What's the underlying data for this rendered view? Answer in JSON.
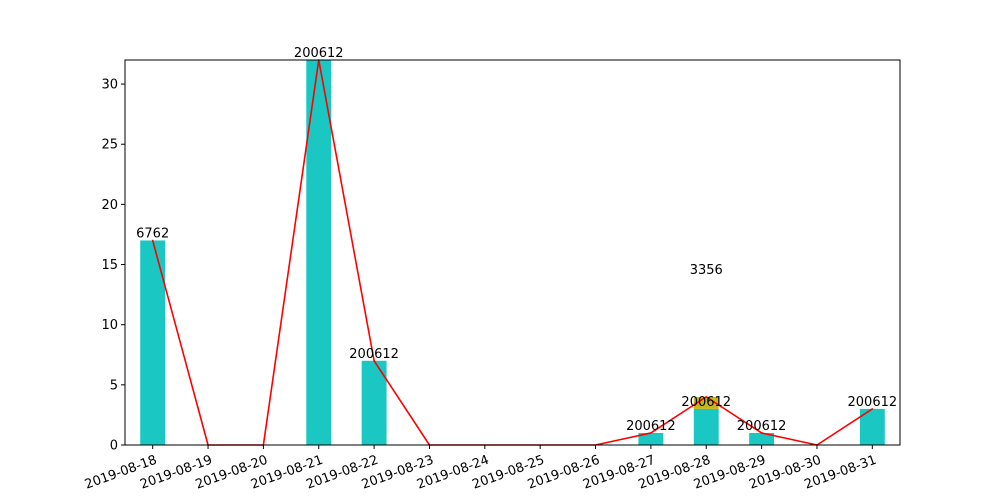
{
  "chart_data": {
    "type": "bar",
    "title": "",
    "xlabel": "",
    "ylabel": "",
    "ylim": [
      0,
      32
    ],
    "yticks": [
      0,
      5,
      10,
      15,
      20,
      25,
      30
    ],
    "grid": false,
    "categories": [
      "2019-08-18",
      "2019-08-19",
      "2019-08-20",
      "2019-08-21",
      "2019-08-22",
      "2019-08-23",
      "2019-08-24",
      "2019-08-25",
      "2019-08-26",
      "2019-08-27",
      "2019-08-28",
      "2019-08-29",
      "2019-08-30",
      "2019-08-31"
    ],
    "series": [
      {
        "kind": "bar",
        "color": "#1ac7c2",
        "values": [
          17,
          0,
          0,
          32,
          7,
          0,
          0,
          0,
          0,
          1,
          3,
          1,
          0,
          3
        ]
      },
      {
        "kind": "bar",
        "color": "#c4b81a",
        "values": [
          0,
          0,
          0,
          0,
          0,
          0,
          0,
          0,
          0,
          0,
          1,
          0,
          0,
          0
        ]
      },
      {
        "kind": "line",
        "color": "#ff0000",
        "values": [
          17,
          0,
          0,
          32,
          7,
          0,
          0,
          0,
          0,
          1,
          4,
          1,
          0,
          3
        ]
      }
    ],
    "bar_labels": [
      {
        "category": "2019-08-18",
        "y": 17,
        "text": "6762"
      },
      {
        "category": "2019-08-21",
        "y": 32,
        "text": "200612"
      },
      {
        "category": "2019-08-22",
        "y": 7,
        "text": "200612"
      },
      {
        "category": "2019-08-27",
        "y": 1,
        "text": "200612"
      },
      {
        "category": "2019-08-28",
        "y": 3,
        "text": "200612"
      },
      {
        "category": "2019-08-29",
        "y": 1,
        "text": "200612"
      },
      {
        "category": "2019-08-31",
        "y": 3,
        "text": "200612"
      }
    ],
    "annotations": [
      {
        "category": "2019-08-28",
        "y": 14.2,
        "text": "3356"
      }
    ]
  }
}
